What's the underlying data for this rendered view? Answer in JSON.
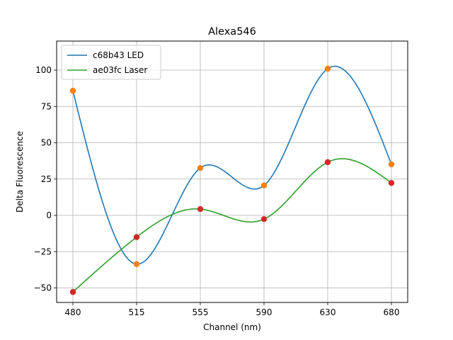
{
  "chart_data": {
    "type": "line",
    "title": "Alexa546",
    "xlabel": "Channel (nm)",
    "ylabel": "Delta Fluorescence",
    "categories": [
      "480",
      "515",
      "555",
      "590",
      "630",
      "680"
    ],
    "ylim": [
      -60,
      120
    ],
    "yticks": [
      -50,
      -25,
      0,
      25,
      50,
      75,
      100
    ],
    "grid": true,
    "legend_position": "top-left",
    "series": [
      {
        "name": "c68b43 LED",
        "line_color": "#1f77b4",
        "marker_color": "#ff7f0e",
        "values": [
          85.8,
          -33.6,
          32.6,
          20.6,
          101.0,
          35.1
        ]
      },
      {
        "name": "ae03fc Laser",
        "line_color": "#2ca02c",
        "marker_color": "#d62728",
        "values": [
          -52.8,
          -15.0,
          4.3,
          -2.6,
          36.6,
          22.3
        ]
      }
    ]
  }
}
